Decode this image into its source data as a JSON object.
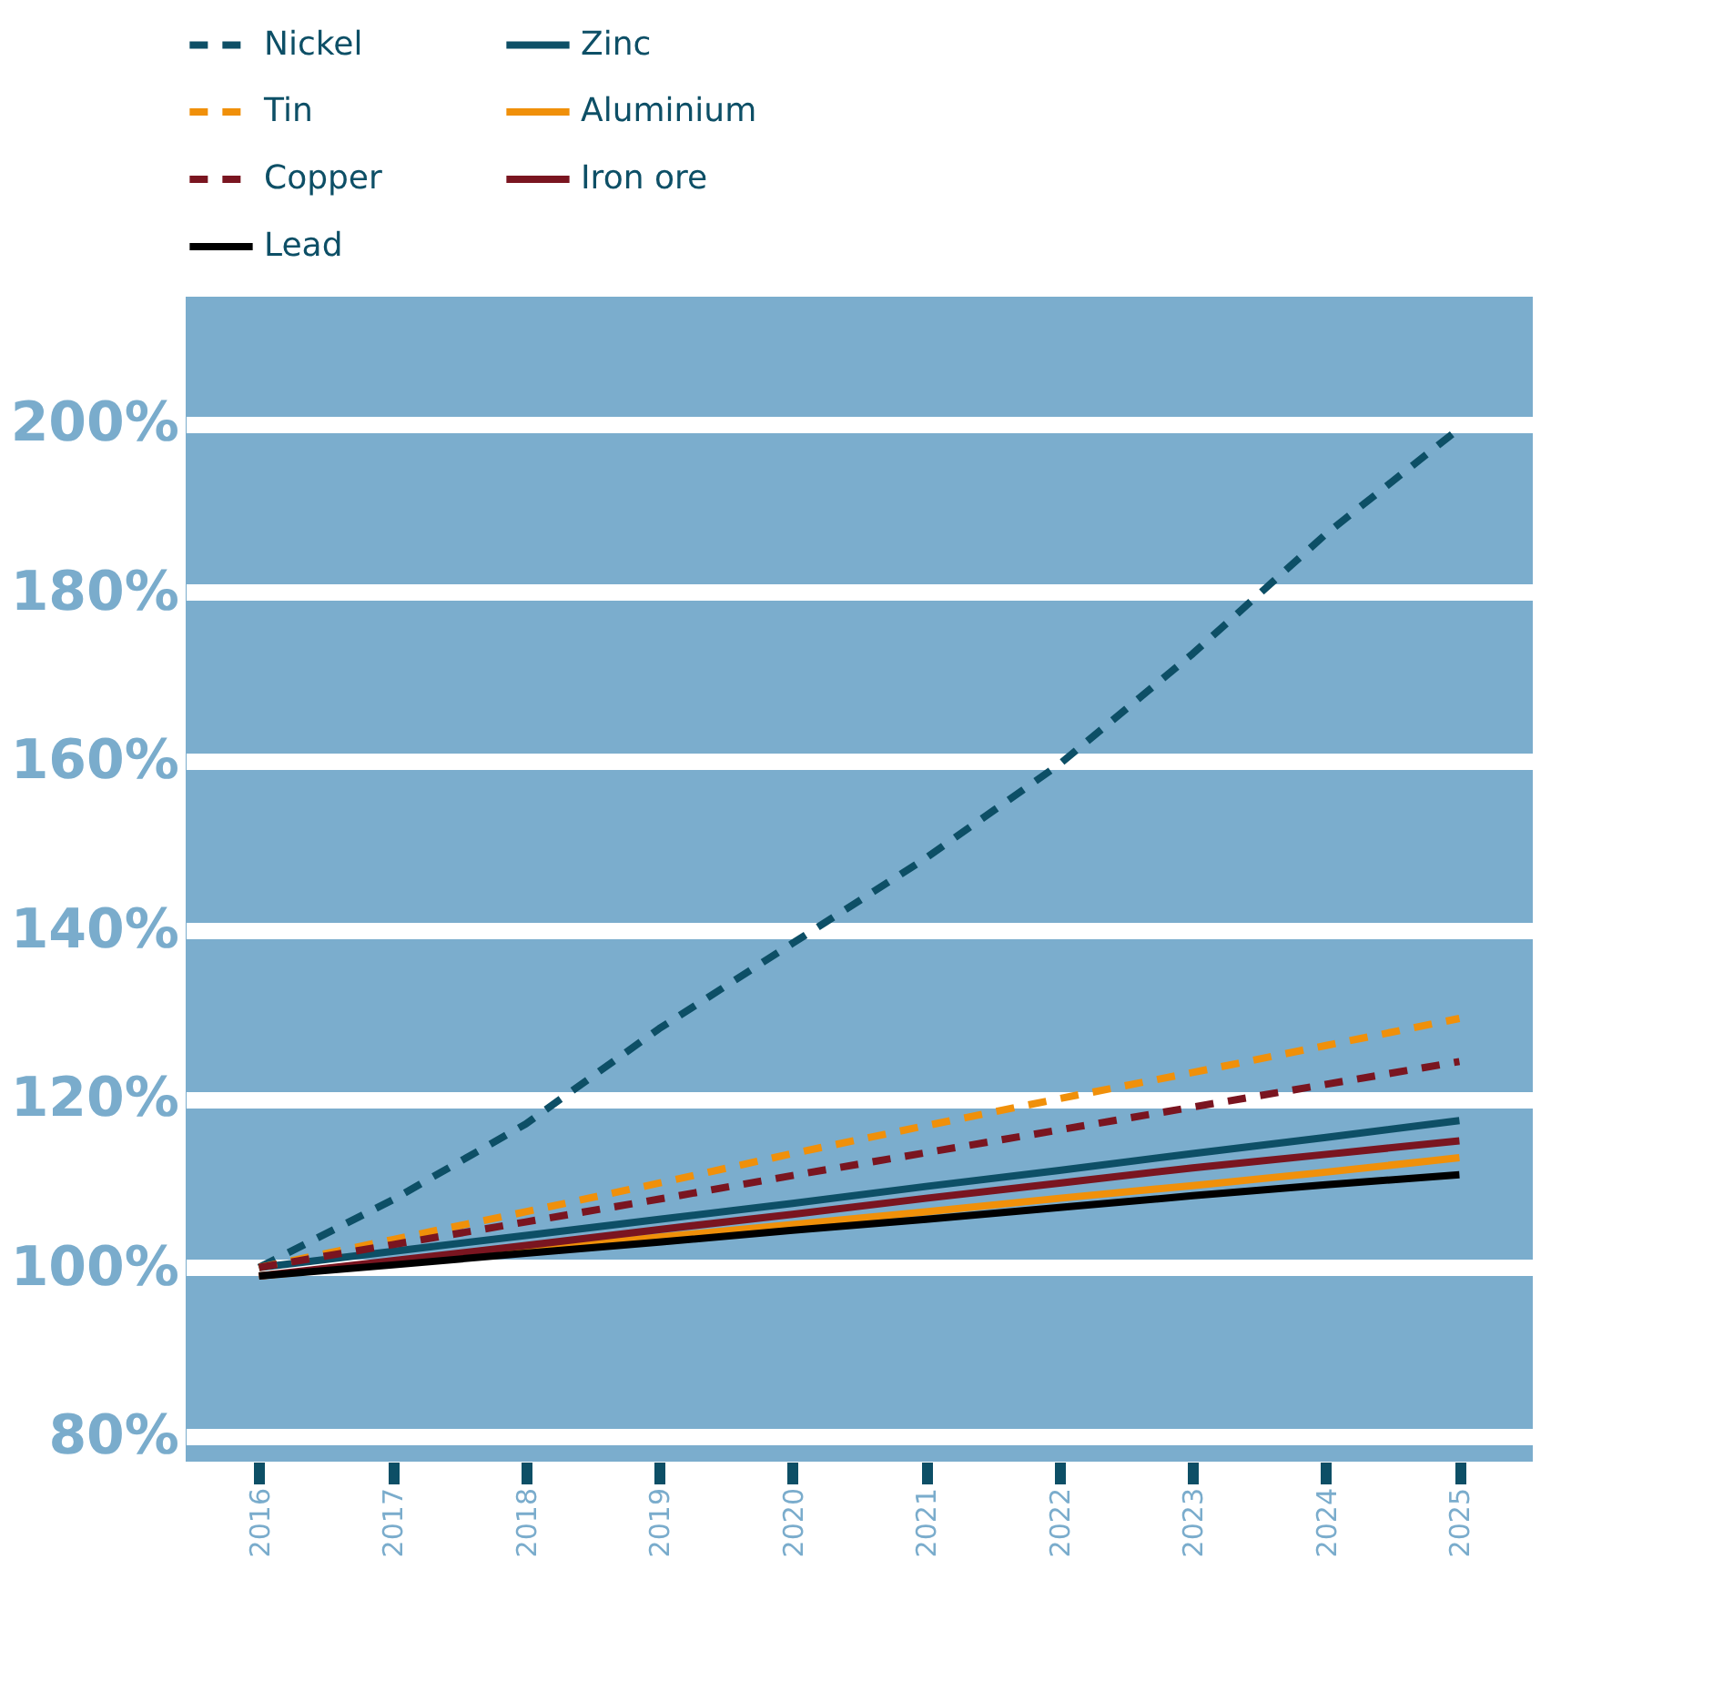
{
  "chart_data": {
    "type": "line",
    "x": [
      2016,
      2017,
      2018,
      2019,
      2020,
      2021,
      2022,
      2023,
      2024,
      2025
    ],
    "series": [
      {
        "name": "Nickel",
        "color": "#0d4f66",
        "line_style": "dashed",
        "values": [
          100,
          108,
          117,
          128.3,
          138.4,
          148.5,
          159.6,
          172.7,
          186.9,
          199.4
        ]
      },
      {
        "name": "Zinc",
        "color": "#0d4f66",
        "line_style": "solid",
        "values": [
          100,
          101.9,
          103.8,
          105.7,
          107.6,
          109.6,
          111.5,
          113.5,
          115.4,
          117.4
        ]
      },
      {
        "name": "Tin",
        "color": "#f0900a",
        "line_style": "dashed",
        "values": [
          100,
          103.3,
          106.6,
          110,
          113.5,
          116.8,
          120,
          123.1,
          126.3,
          129.5
        ]
      },
      {
        "name": "Aluminium",
        "color": "#f0900a",
        "line_style": "solid",
        "values": [
          99,
          100.5,
          102,
          103.6,
          105.1,
          106.6,
          108.2,
          109.7,
          111.3,
          113
        ]
      },
      {
        "name": "Copper",
        "color": "#7a1520",
        "line_style": "dashed",
        "values": [
          100,
          102.7,
          105.4,
          108.1,
          110.9,
          113.6,
          116.3,
          119,
          121.7,
          124.4
        ]
      },
      {
        "name": "Iron ore",
        "color": "#7a1520",
        "line_style": "solid",
        "values": [
          99,
          100.8,
          102.6,
          104.5,
          106.3,
          108.2,
          110,
          111.8,
          113.4,
          115
        ]
      },
      {
        "name": "Lead",
        "color": "#000000",
        "line_style": "solid",
        "values": [
          99,
          100.3,
          101.7,
          103,
          104.4,
          105.7,
          107.1,
          108.5,
          109.8,
          111
        ]
      }
    ],
    "xlim": [
      2015.45,
      2025.55
    ],
    "xticks": [
      2016,
      2017,
      2018,
      2019,
      2020,
      2021,
      2022,
      2023,
      2024,
      2025
    ],
    "ylim": [
      77,
      215
    ],
    "yticks": [
      {
        "value": 80,
        "label": "80%"
      },
      {
        "value": 100,
        "label": "100%"
      },
      {
        "value": 120,
        "label": "120%"
      },
      {
        "value": 140,
        "label": "140%"
      },
      {
        "value": 160,
        "label": "160%"
      },
      {
        "value": 180,
        "label": "180%"
      },
      {
        "value": 200,
        "label": "200%"
      }
    ],
    "grid": "y",
    "legend": "top",
    "marker": "none"
  }
}
